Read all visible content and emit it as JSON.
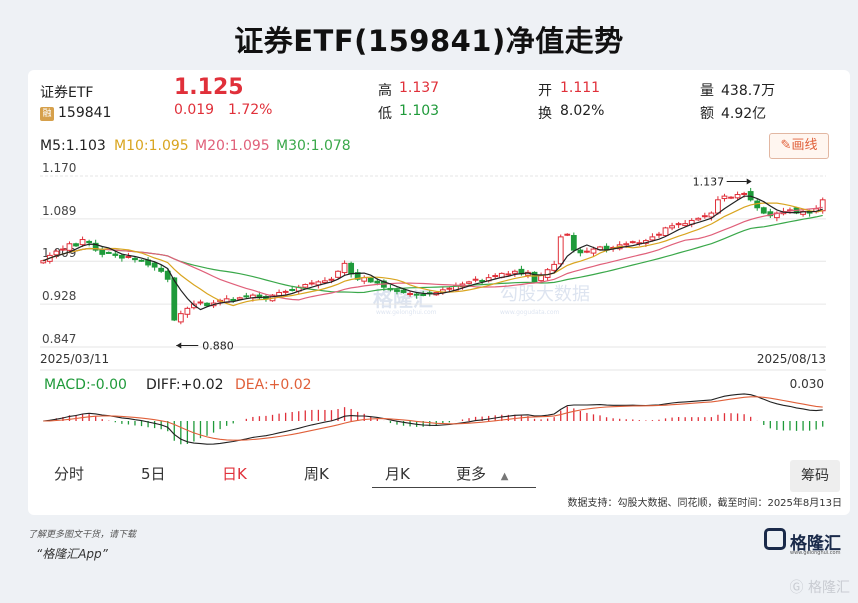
{
  "page_title": "证券ETF(159841)净值走势",
  "quote": {
    "name": "证券ETF",
    "tag": "融",
    "code": "159841",
    "price": "1.125",
    "change": "0.019",
    "change_pct": "1.72%",
    "high_label": "高",
    "high": "1.137",
    "low_label": "低",
    "low": "1.103",
    "open_label": "开",
    "open": "1.111",
    "turnover_label": "换",
    "turnover": "8.02%",
    "volume_label": "量",
    "volume": "438.7万",
    "amount_label": "额",
    "amount": "4.92亿"
  },
  "ma_legend": {
    "m5": "M5:1.103",
    "m10": "M10:1.095",
    "m20": "M20:1.095",
    "m30": "M30:1.078"
  },
  "draw_button": "画线",
  "macd_legend": {
    "macd": "MACD:-0.00",
    "diff": "DIFF:+0.02",
    "dea": "DEA:+0.02"
  },
  "tabs": [
    "分时",
    "5日",
    "日K",
    "周K",
    "月K",
    "更多"
  ],
  "active_tab": "日K",
  "chips_button": "筹码",
  "source_note": "数据支持：勾股大数据、同花顺，截至时间：2025年8月13日",
  "footer": {
    "small": "了解更多图文干货，请下载",
    "app": "“格隆汇App”",
    "logo_text": "格隆汇",
    "logo_sub": "www.gelonghui.com",
    "watermark": "格隆汇",
    "chart_watermark_a": "格隆汇",
    "chart_watermark_b": "勾股大数据",
    "chart_watermark_sub_a": "www.gelonghui.com",
    "chart_watermark_sub_b": "www.gogudata.com"
  },
  "colors": {
    "up": "#e0303a",
    "down": "#1f9a3a",
    "m5": "#222222",
    "m10": "#d9a520",
    "m20": "#e0607a",
    "m30": "#3aa84a"
  },
  "chart_data": [
    {
      "type": "candlestick",
      "yticks": [
        "1.170",
        "1.089",
        "1.009",
        "0.928",
        "0.847"
      ],
      "ylim": [
        0.847,
        1.17
      ],
      "x_start": "2025/03/11",
      "x_end": "2025/08/13",
      "annotations": [
        {
          "text": "1.137",
          "value": 1.137,
          "index": 108
        },
        {
          "text": "0.880",
          "value": 0.88,
          "index": 20
        }
      ],
      "close": [
        1.01,
        1.02,
        1.028,
        1.032,
        1.042,
        1.038,
        1.05,
        1.044,
        1.03,
        1.022,
        1.025,
        1.02,
        1.015,
        1.018,
        1.012,
        1.01,
        1.002,
        0.998,
        0.99,
        0.975,
        0.898,
        0.91,
        0.92,
        0.928,
        0.932,
        0.925,
        0.93,
        0.935,
        0.938,
        0.936,
        0.94,
        0.942,
        0.945,
        0.94,
        0.938,
        0.945,
        0.95,
        0.952,
        0.955,
        0.96,
        0.965,
        0.968,
        0.97,
        0.972,
        0.975,
        0.99,
        1.005,
        0.985,
        0.975,
        0.978,
        0.97,
        0.968,
        0.96,
        0.955,
        0.952,
        0.95,
        0.948,
        0.945,
        0.946,
        0.948,
        0.95,
        0.955,
        0.958,
        0.962,
        0.966,
        0.97,
        0.975,
        0.972,
        0.978,
        0.982,
        0.986,
        0.985,
        0.99,
        0.985,
        0.988,
        0.97,
        0.982,
        0.993,
        1.003,
        1.055,
        1.06,
        1.03,
        1.025,
        1.028,
        1.032,
        1.036,
        1.03,
        1.035,
        1.04,
        1.042,
        1.046,
        1.044,
        1.048,
        1.055,
        1.06,
        1.072,
        1.076,
        1.08,
        1.08,
        1.086,
        1.09,
        1.095,
        1.1,
        1.125,
        1.132,
        1.13,
        1.135,
        1.137,
        1.125,
        1.11,
        1.1,
        1.095,
        1.1,
        1.103,
        1.106,
        1.1,
        1.103,
        1.1,
        1.108,
        1.125
      ]
    },
    {
      "type": "macd",
      "ymax_label": "0.030"
    }
  ]
}
